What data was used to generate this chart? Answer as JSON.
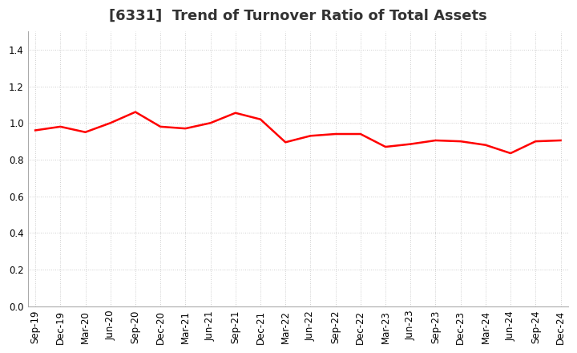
{
  "title": "[6331]  Trend of Turnover Ratio of Total Assets",
  "labels": [
    "Sep-19",
    "Dec-19",
    "Mar-20",
    "Jun-20",
    "Sep-20",
    "Dec-20",
    "Mar-21",
    "Jun-21",
    "Sep-21",
    "Dec-21",
    "Mar-22",
    "Jun-22",
    "Sep-22",
    "Dec-22",
    "Mar-23",
    "Jun-23",
    "Sep-23",
    "Dec-23",
    "Mar-24",
    "Jun-24",
    "Sep-24",
    "Dec-24"
  ],
  "values": [
    0.96,
    0.98,
    0.95,
    1.0,
    1.06,
    0.98,
    0.97,
    1.0,
    1.055,
    1.02,
    0.895,
    0.93,
    0.94,
    0.94,
    0.87,
    0.885,
    0.905,
    0.9,
    0.88,
    0.835,
    0.9,
    0.905
  ],
  "line_color": "#ff0000",
  "line_width": 1.8,
  "ylim": [
    0.0,
    1.5
  ],
  "yticks": [
    0.0,
    0.2,
    0.4,
    0.6,
    0.8,
    1.0,
    1.2,
    1.4
  ],
  "grid_color": "#cccccc",
  "background_color": "#ffffff",
  "title_fontsize": 13,
  "tick_fontsize": 8.5,
  "title_color": "#333333"
}
